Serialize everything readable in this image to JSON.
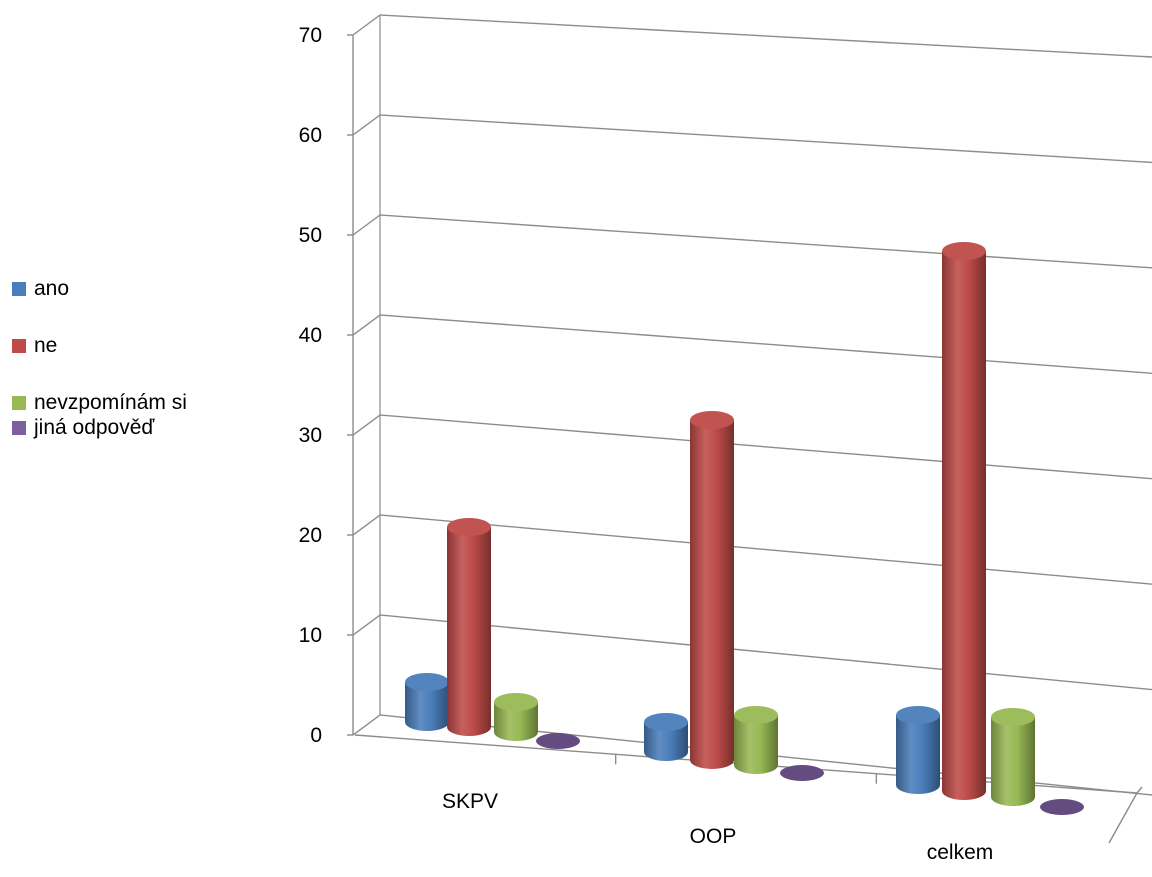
{
  "chart_data": {
    "type": "bar",
    "categories": [
      "SKPV",
      "OOP",
      "celkem"
    ],
    "series": [
      {
        "name": "ano",
        "color": "#4a7ebb",
        "values": [
          4,
          3,
          7
        ]
      },
      {
        "name": "ne",
        "color": "#be4b48",
        "values": [
          20,
          34,
          54
        ]
      },
      {
        "name": "nevzpomínám si",
        "color": "#98b954",
        "values": [
          3,
          5,
          8
        ]
      },
      {
        "name": "jiná odpověď",
        "color": "#7d5fa0",
        "values": [
          0,
          0,
          0
        ]
      }
    ],
    "ylim": [
      0,
      70
    ],
    "yticks": [
      "0",
      "10",
      "20",
      "30",
      "40",
      "50",
      "60",
      "70"
    ],
    "grid": true,
    "legend_position": "left"
  }
}
